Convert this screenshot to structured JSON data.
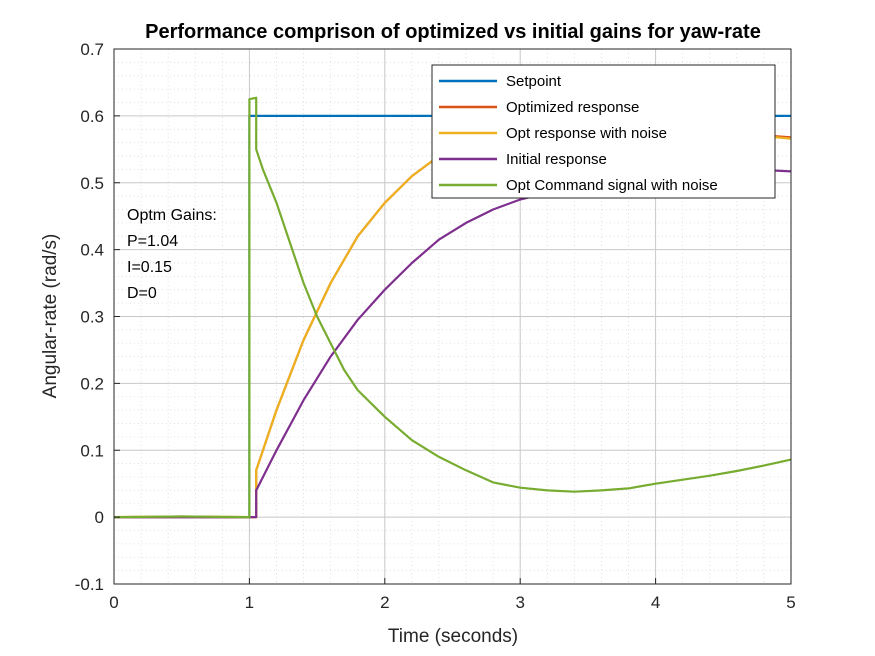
{
  "chart_data": {
    "type": "line",
    "title": "Performance comprison of optimized vs initial gains for yaw-rate",
    "xlabel": "Time (seconds)",
    "ylabel": "Angular-rate (rad/s)",
    "xlim": [
      0,
      5
    ],
    "ylim": [
      -0.1,
      0.7
    ],
    "xticks": [
      0,
      1,
      2,
      3,
      4,
      5
    ],
    "yticks": [
      -0.1,
      0,
      0.1,
      0.2,
      0.3,
      0.4,
      0.5,
      0.6,
      0.7
    ],
    "xtick_labels": [
      "0",
      "1",
      "2",
      "3",
      "4",
      "5"
    ],
    "ytick_labels": [
      "-0.1",
      "0",
      "0.1",
      "0.2",
      "0.3",
      "0.4",
      "0.5",
      "0.6",
      "0.7"
    ],
    "grid": true,
    "minor_grid": true,
    "legend_position": "top-right",
    "annotation": [
      "Optm Gains:",
      "P=1.04",
      "I=0.15",
      "D=0"
    ],
    "series": [
      {
        "name": "Setpoint",
        "color": "#0072BD",
        "x": [
          0,
          1.0,
          1.0,
          5.0
        ],
        "y": [
          0,
          0,
          0.6,
          0.6
        ]
      },
      {
        "name": "Optimized response",
        "color": "#D95319",
        "x": [
          0,
          1.0,
          1.05,
          1.05,
          1.2,
          1.4,
          1.6,
          1.8,
          2.0,
          2.2,
          2.4,
          2.6,
          2.8,
          3.0,
          3.5,
          4.0,
          4.5,
          5.0
        ],
        "y": [
          0,
          0,
          0,
          0.07,
          0.16,
          0.265,
          0.35,
          0.42,
          0.47,
          0.51,
          0.54,
          0.56,
          0.57,
          0.575,
          0.58,
          0.58,
          0.575,
          0.568
        ]
      },
      {
        "name": "Opt response with noise",
        "color": "#EDB120",
        "x": [
          0,
          0.5,
          1.0,
          1.05,
          1.05,
          1.2,
          1.4,
          1.6,
          1.8,
          2.0,
          2.2,
          2.4,
          2.6,
          2.8,
          3.0,
          3.5,
          4.0,
          4.5,
          5.0
        ],
        "y": [
          0,
          0.001,
          0,
          0,
          0.07,
          0.16,
          0.265,
          0.35,
          0.42,
          0.47,
          0.51,
          0.54,
          0.56,
          0.57,
          0.575,
          0.58,
          0.58,
          0.575,
          0.566
        ]
      },
      {
        "name": "Initial response",
        "color": "#7E2F8E",
        "x": [
          0,
          1.0,
          1.05,
          1.05,
          1.2,
          1.4,
          1.6,
          1.8,
          2.0,
          2.2,
          2.4,
          2.6,
          2.8,
          3.0,
          3.5,
          4.0,
          4.5,
          5.0
        ],
        "y": [
          0,
          0,
          0,
          0.04,
          0.1,
          0.175,
          0.24,
          0.295,
          0.34,
          0.38,
          0.415,
          0.44,
          0.46,
          0.475,
          0.5,
          0.515,
          0.522,
          0.517
        ]
      },
      {
        "name": "Opt Command signal with noise",
        "color": "#77AC30",
        "x": [
          0,
          0.5,
          1.0,
          1.0,
          1.05,
          1.05,
          1.1,
          1.2,
          1.3,
          1.4,
          1.5,
          1.6,
          1.7,
          1.8,
          2.0,
          2.2,
          2.4,
          2.6,
          2.8,
          3.0,
          3.2,
          3.4,
          3.6,
          3.8,
          4.0,
          4.2,
          4.4,
          4.6,
          4.8,
          5.0
        ],
        "y": [
          0,
          0.001,
          0,
          0.625,
          0.627,
          0.55,
          0.52,
          0.47,
          0.41,
          0.35,
          0.3,
          0.26,
          0.22,
          0.19,
          0.15,
          0.115,
          0.09,
          0.07,
          0.052,
          0.044,
          0.04,
          0.038,
          0.04,
          0.043,
          0.05,
          0.056,
          0.062,
          0.069,
          0.077,
          0.086
        ]
      }
    ]
  }
}
